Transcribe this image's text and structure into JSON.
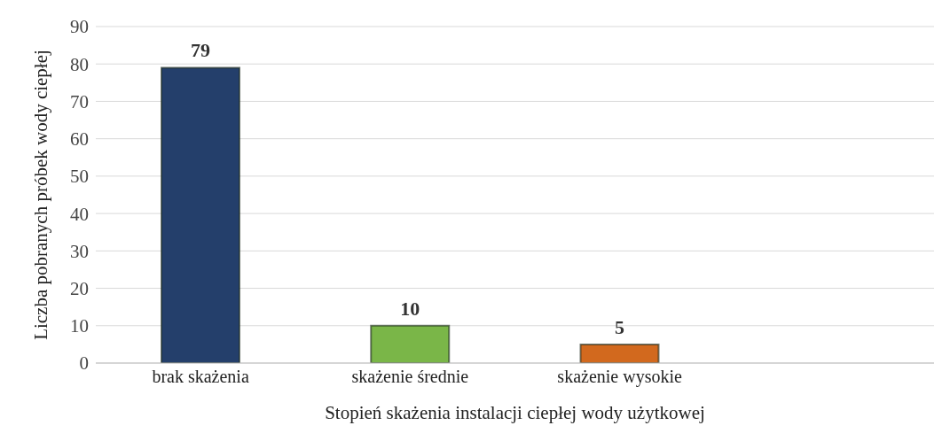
{
  "chart_data": {
    "type": "bar",
    "xlabel": "Stopień skażenia instalacji ciepłej wody użytkowej",
    "ylabel": "Liczba pobranych próbek wody ciepłej",
    "categories": [
      "brak skażenia",
      "skażenie średnie",
      "skażenie wysokie",
      null
    ],
    "values": [
      79,
      10,
      5,
      null
    ],
    "colors": [
      "#243f6b",
      "#7ab648",
      "#d2691e",
      "#888888"
    ],
    "ylim": [
      0,
      90
    ],
    "yticks": [
      0,
      10,
      20,
      30,
      40,
      50,
      60,
      70,
      80,
      90
    ],
    "grid": "y",
    "data_labels": true
  }
}
